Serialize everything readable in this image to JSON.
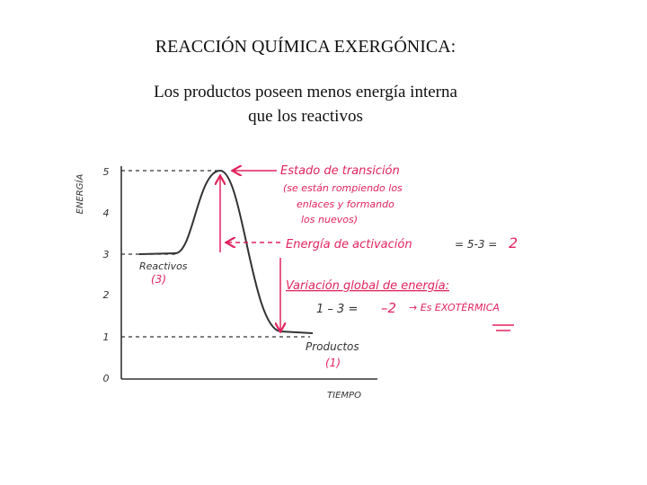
{
  "header": {
    "title": "REACCIÓN QUÍMICA EXERGÓNICA:",
    "subtitle_lines": [
      "Los productos poseen menos energía interna",
      "que los reactivos"
    ]
  },
  "diagram": {
    "y_axis_label": "ENERGÍA",
    "x_axis_label": "TIEMPO",
    "y_tick_labels": [
      "0",
      "1",
      "2",
      "3",
      "4",
      "5"
    ],
    "reactants": {
      "label": "Reactivos",
      "value": "(3)"
    },
    "products": {
      "label": "Productos",
      "value": "(1)"
    },
    "transition_state": {
      "label": "Estado de transición",
      "note_lines": [
        "(se están rompiendo los",
        "enlaces y formando",
        "los nuevos)"
      ]
    },
    "activation_energy": {
      "label": "Energía de activación",
      "formula": "= 5-3 =",
      "result": "2"
    },
    "global_change": {
      "label": "Variación global de energía:",
      "formula": "1 – 3 =",
      "result": "–2",
      "conclusion": "→ Es EXOTÉRMICA"
    }
  }
}
